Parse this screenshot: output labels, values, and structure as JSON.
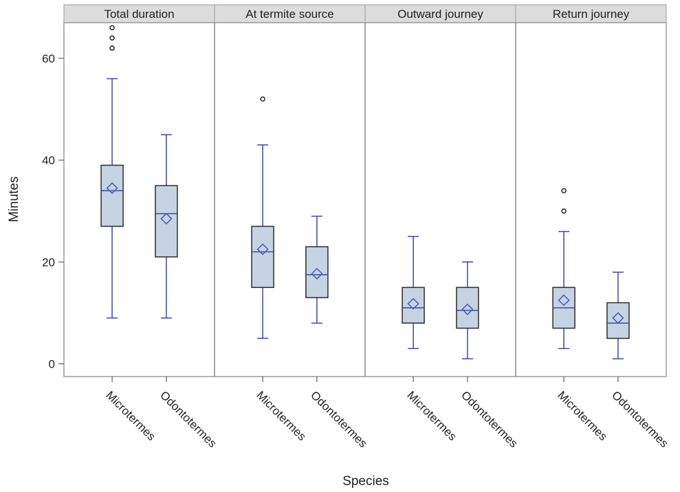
{
  "chart_data": {
    "type": "boxplot",
    "ylabel": "Minutes",
    "xlabel": "Species",
    "ylim": [
      -2.5,
      67
    ],
    "yticks": [
      0,
      20,
      40,
      60
    ],
    "categories": [
      "Microtermes",
      "Odontotermes"
    ],
    "panels": [
      {
        "title": "Total duration",
        "boxes": [
          {
            "category": "Microtermes",
            "min": 9,
            "q1": 27,
            "median": 34,
            "q3": 39,
            "max": 56,
            "mean": 34.5,
            "outliers": [
              62,
              64,
              66
            ]
          },
          {
            "category": "Odontotermes",
            "min": 9,
            "q1": 21,
            "median": 29.5,
            "q3": 35,
            "max": 45,
            "mean": 28.5,
            "outliers": []
          }
        ]
      },
      {
        "title": "At termite source",
        "boxes": [
          {
            "category": "Microtermes",
            "min": 5,
            "q1": 15,
            "median": 22,
            "q3": 27,
            "max": 43,
            "mean": 22.5,
            "outliers": [
              52
            ]
          },
          {
            "category": "Odontotermes",
            "min": 8,
            "q1": 13,
            "median": 17.5,
            "q3": 23,
            "max": 29,
            "mean": 17.7,
            "outliers": []
          }
        ]
      },
      {
        "title": "Outward journey",
        "boxes": [
          {
            "category": "Microtermes",
            "min": 3,
            "q1": 8,
            "median": 11,
            "q3": 15,
            "max": 25,
            "mean": 11.8,
            "outliers": []
          },
          {
            "category": "Odontotermes",
            "min": 1,
            "q1": 7,
            "median": 10.5,
            "q3": 15,
            "max": 20,
            "mean": 10.7,
            "outliers": []
          }
        ]
      },
      {
        "title": "Return journey",
        "boxes": [
          {
            "category": "Microtermes",
            "min": 3,
            "q1": 7,
            "median": 11,
            "q3": 15,
            "max": 26,
            "mean": 12.5,
            "outliers": [
              30,
              34
            ]
          },
          {
            "category": "Odontotermes",
            "min": 1,
            "q1": 5,
            "median": 8,
            "q3": 12,
            "max": 18,
            "mean": 9,
            "outliers": []
          }
        ]
      }
    ],
    "colors": {
      "box_fill": "#c6d3e3",
      "box_stroke": "#2b2b2b",
      "whisker": "#3a4aa3",
      "mean_marker": "#4a5ab8",
      "outlier": "#222222",
      "header_fill": "#dcdcdc",
      "panel_border": "#9a9a9a",
      "axis": "#444444"
    }
  }
}
